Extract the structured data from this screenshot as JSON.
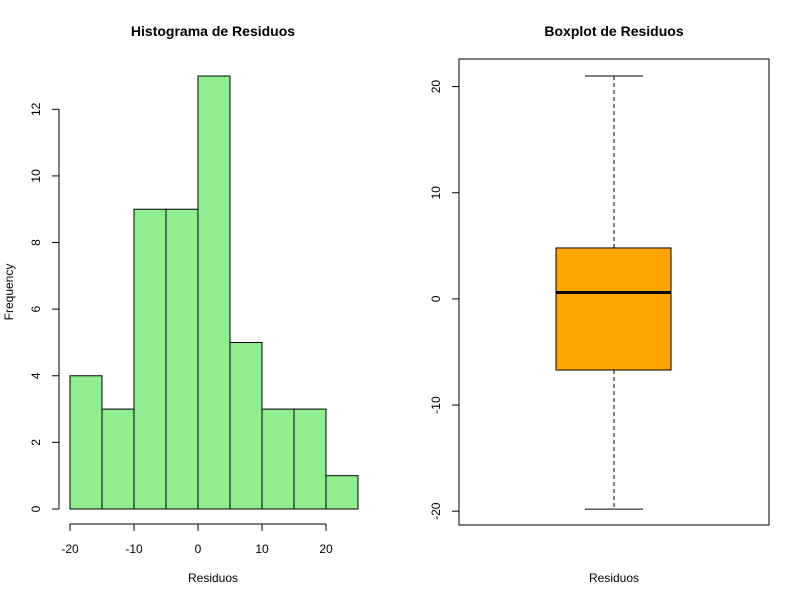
{
  "chart_data": [
    {
      "type": "bar",
      "subtype": "histogram",
      "title": "Histograma de Residuos",
      "xlabel": "Residuos",
      "ylabel": "Frequency",
      "bin_edges": [
        -20,
        -15,
        -10,
        -5,
        0,
        5,
        10,
        15,
        20,
        25
      ],
      "values": [
        4,
        3,
        9,
        9,
        13,
        5,
        3,
        3,
        1
      ],
      "xlim": [
        -20,
        25
      ],
      "ylim": [
        0,
        13
      ],
      "x_ticks": [
        -20,
        -10,
        0,
        10,
        20
      ],
      "y_ticks": [
        0,
        2,
        4,
        6,
        8,
        10,
        12
      ],
      "bar_color": "#90EE90",
      "edge_color": "#000000",
      "grid": false
    },
    {
      "type": "boxplot",
      "title": "Boxplot de Residuos",
      "xlabel": "Residuos",
      "ylabel": "",
      "whisker_low": -19.8,
      "q1": -6.7,
      "median": 0.6,
      "q3": 4.8,
      "whisker_high": 21,
      "ylim": [
        -21.3,
        22.6
      ],
      "y_ticks": [
        -20,
        -10,
        0,
        10,
        20
      ],
      "box_color": "#FFA500",
      "grid": false
    }
  ]
}
